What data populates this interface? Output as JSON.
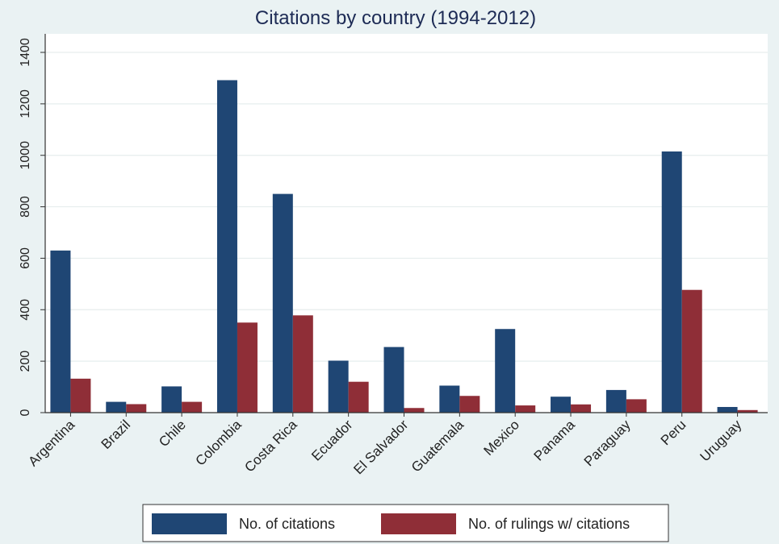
{
  "chart_data": {
    "type": "bar",
    "title": "Citations by country (1994-2012)",
    "xlabel": "",
    "ylabel": "",
    "ylim": [
      0,
      1400
    ],
    "yticks": [
      0,
      200,
      400,
      600,
      800,
      1000,
      1200,
      1400
    ],
    "categories": [
      "Argentina",
      "Brazil",
      "Chile",
      "Colombia",
      "Costa Rica",
      "Ecuador",
      "El Salvador",
      "Guatemala",
      "Mexico",
      "Panama",
      "Paraguay",
      "Peru",
      "Uruguay"
    ],
    "series": [
      {
        "name": "No. of citations",
        "color": "#1f4674",
        "values": [
          630,
          42,
          102,
          1292,
          850,
          202,
          255,
          105,
          325,
          62,
          88,
          1015,
          22
        ]
      },
      {
        "name": "No. of rulings w/ citations",
        "color": "#8f2e37",
        "values": [
          132,
          33,
          42,
          350,
          378,
          120,
          18,
          65,
          28,
          32,
          52,
          477,
          10
        ]
      }
    ],
    "grid": true,
    "legend": "bottom"
  }
}
